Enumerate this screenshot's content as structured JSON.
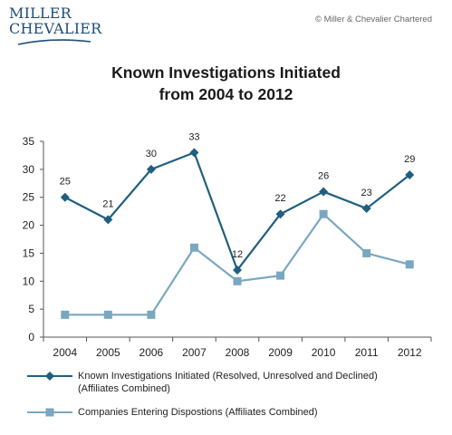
{
  "brand": {
    "logo_line1": "MILLER",
    "logo_line2": "CHEVALIER",
    "logo_color": "#1e4e79",
    "copyright": "© Miller & Chevalier Chartered"
  },
  "chart_data": {
    "type": "line",
    "title_line1": "Known Investigations Initiated",
    "title_line2": "from 2004 to 2012",
    "xlabel": "",
    "ylabel": "",
    "categories": [
      "2004",
      "2005",
      "2006",
      "2007",
      "2008",
      "2009",
      "2010",
      "2011",
      "2012"
    ],
    "ylim": [
      0,
      35
    ],
    "yticks": [
      0,
      5,
      10,
      15,
      20,
      25,
      30,
      35
    ],
    "grid": false,
    "legend_position": "bottom",
    "series": [
      {
        "name": "Known Investigations Initiated (Resolved, Unresolved and Declined)",
        "name_line2": "(Affiliates Combined)",
        "values": [
          25,
          21,
          30,
          33,
          12,
          22,
          26,
          23,
          29
        ],
        "color": "#1f5f7f",
        "marker": "diamond",
        "data_labels": true
      },
      {
        "name": "Companies Entering Dispostions (Affiliates Combined)",
        "values": [
          4,
          4,
          4,
          16,
          10,
          11,
          22,
          15,
          13
        ],
        "color": "#7aa7c0",
        "marker": "square",
        "data_labels": false
      }
    ]
  }
}
